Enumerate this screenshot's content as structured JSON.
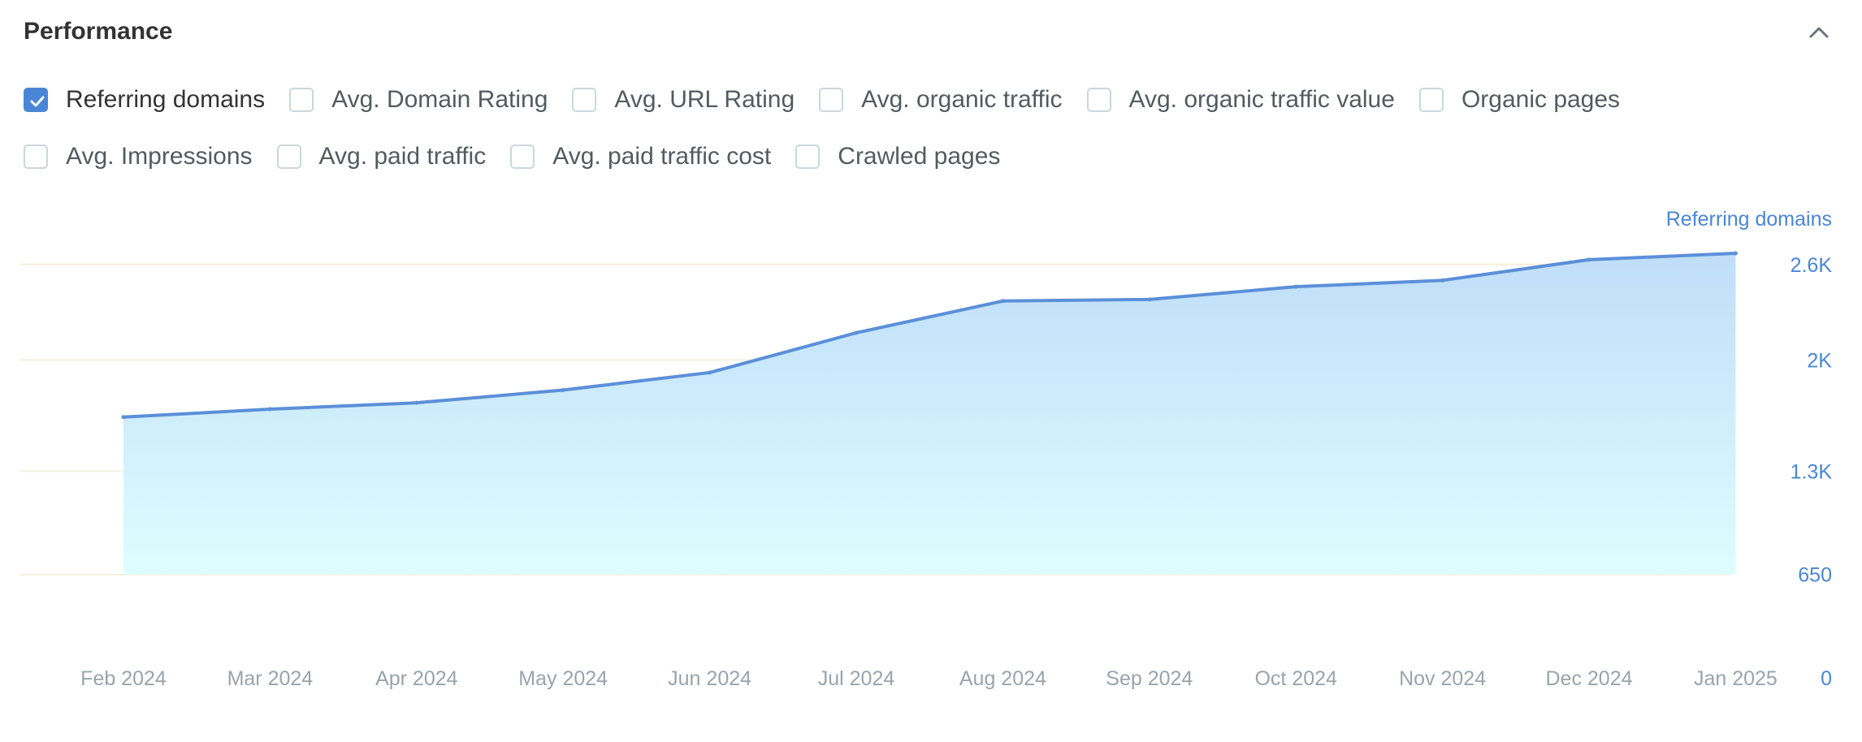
{
  "panel": {
    "title": "Performance",
    "collapse_icon": "chevron-up-icon"
  },
  "metrics": [
    {
      "label": "Referring domains",
      "checked": true
    },
    {
      "label": "Avg. Domain Rating",
      "checked": false
    },
    {
      "label": "Avg. URL Rating",
      "checked": false
    },
    {
      "label": "Avg. organic traffic",
      "checked": false
    },
    {
      "label": "Avg. organic traffic value",
      "checked": false
    },
    {
      "label": "Organic pages",
      "checked": false
    },
    {
      "label": "Avg. Impressions",
      "checked": false
    },
    {
      "label": "Avg. paid traffic",
      "checked": false
    },
    {
      "label": "Avg. paid traffic cost",
      "checked": false
    },
    {
      "label": "Crawled pages",
      "checked": false
    }
  ],
  "colors": {
    "accent": "#4a86d6",
    "line": "#5b8fd9",
    "fill_top": "#bcdcf8",
    "fill_bottom": "#dcfdff",
    "grid": "#f3f0dc",
    "muted_text": "#9aa3ad"
  },
  "chart_data": {
    "type": "area",
    "title": "",
    "xlabel": "",
    "ylabel": "Referring domains",
    "x": [
      "Feb 2024",
      "Mar 2024",
      "Apr 2024",
      "May 2024",
      "Jun 2024",
      "Jul 2024",
      "Aug 2024",
      "Sep 2024",
      "Oct 2024",
      "Nov 2024",
      "Dec 2024",
      "Jan 2025"
    ],
    "series": [
      {
        "name": "Referring domains",
        "values": [
          1640,
          1690,
          1730,
          1810,
          1920,
          2170,
          2370,
          2380,
          2460,
          2500,
          2630,
          2670
        ]
      }
    ],
    "yticks": [
      {
        "value": 0,
        "label": "0"
      },
      {
        "value": 650,
        "label": "650"
      },
      {
        "value": 1300,
        "label": "1.3K"
      },
      {
        "value": 2000,
        "label": "2K"
      },
      {
        "value": 2600,
        "label": "2.6K"
      }
    ],
    "ylim": [
      0,
      2900
    ],
    "grid": true,
    "legend": "none"
  }
}
